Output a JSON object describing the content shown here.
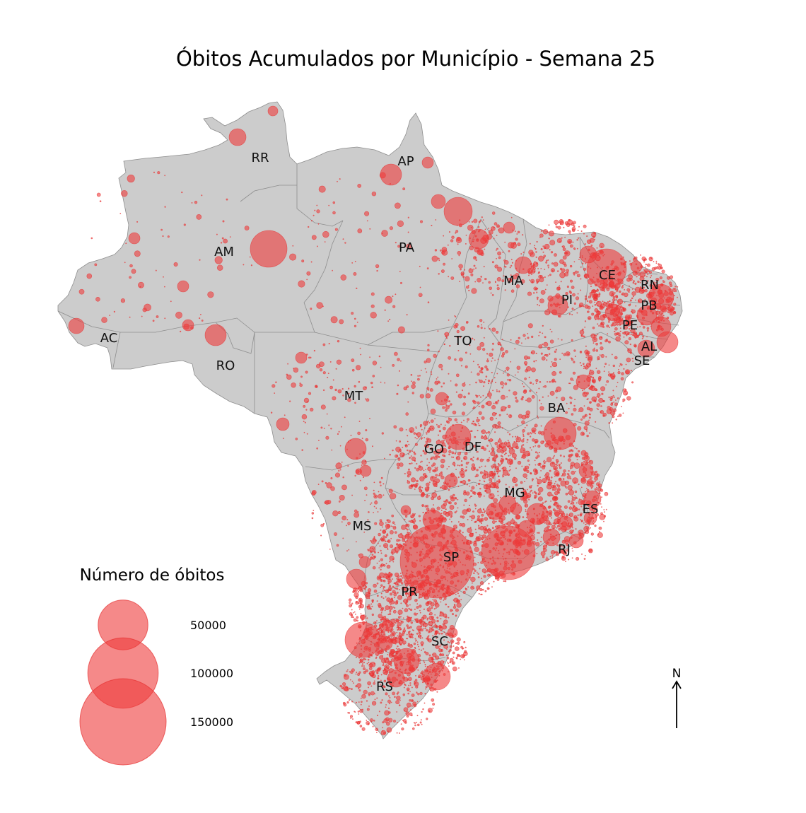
{
  "title": "Óbitos Acumulados por Município - Semana 25",
  "colors": {
    "land": "#cccccc",
    "border": "#8e8e8e",
    "bubble": "#ef3b3b",
    "bubble_stroke": "#e53030"
  },
  "states": [
    {
      "code": "RR"
    },
    {
      "code": "AP"
    },
    {
      "code": "AM"
    },
    {
      "code": "PA"
    },
    {
      "code": "MA"
    },
    {
      "code": "CE"
    },
    {
      "code": "RN"
    },
    {
      "code": "PI"
    },
    {
      "code": "PB"
    },
    {
      "code": "PE"
    },
    {
      "code": "AC"
    },
    {
      "code": "TO"
    },
    {
      "code": "AL"
    },
    {
      "code": "SE"
    },
    {
      "code": "RO"
    },
    {
      "code": "MT"
    },
    {
      "code": "BA"
    },
    {
      "code": "GO"
    },
    {
      "code": "DF"
    },
    {
      "code": "MG"
    },
    {
      "code": "ES"
    },
    {
      "code": "MS"
    },
    {
      "code": "RJ"
    },
    {
      "code": "SP"
    },
    {
      "code": "PR"
    },
    {
      "code": "SC"
    },
    {
      "code": "RS"
    }
  ],
  "legend": {
    "title": "Número de óbitos",
    "items": [
      {
        "value": 50000,
        "label": "50000"
      },
      {
        "value": 100000,
        "label": "100000"
      },
      {
        "value": 150000,
        "label": "150000"
      }
    ]
  },
  "north_arrow": {
    "label": "N"
  }
}
